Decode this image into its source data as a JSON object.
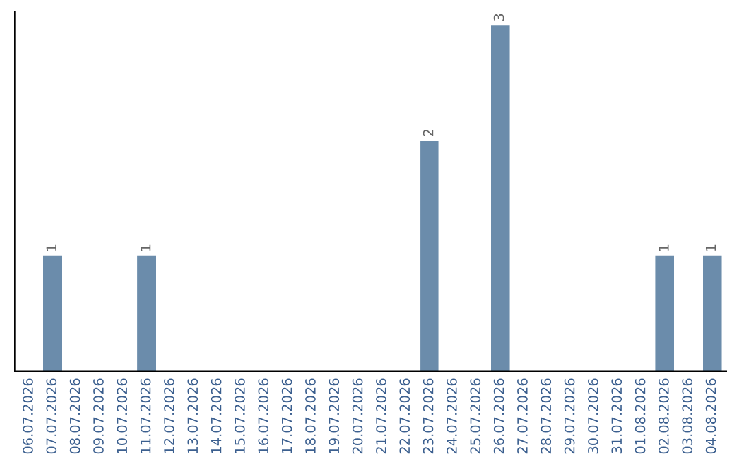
{
  "chart_data": {
    "type": "bar",
    "categories": [
      "06.07.2026",
      "07.07.2026",
      "08.07.2026",
      "09.07.2026",
      "10.07.2026",
      "11.07.2026",
      "12.07.2026",
      "13.07.2026",
      "14.07.2026",
      "15.07.2026",
      "16.07.2026",
      "17.07.2026",
      "18.07.2026",
      "19.07.2026",
      "20.07.2026",
      "21.07.2026",
      "22.07.2026",
      "23.07.2026",
      "24.07.2026",
      "25.07.2026",
      "26.07.2026",
      "27.07.2026",
      "28.07.2026",
      "29.07.2026",
      "30.07.2026",
      "31.07.2026",
      "01.08.2026",
      "02.08.2026",
      "03.08.2026",
      "04.08.2026"
    ],
    "values": [
      0,
      1,
      0,
      0,
      0,
      1,
      0,
      0,
      0,
      0,
      0,
      0,
      0,
      0,
      0,
      0,
      0,
      2,
      0,
      0,
      3,
      0,
      0,
      0,
      0,
      0,
      0,
      1,
      0,
      1
    ],
    "value_labels": [
      null,
      "1",
      null,
      null,
      null,
      "1",
      null,
      null,
      null,
      null,
      null,
      null,
      null,
      null,
      null,
      null,
      null,
      "2",
      null,
      null,
      "3",
      null,
      null,
      null,
      null,
      null,
      null,
      "1",
      null,
      "1"
    ],
    "color": "#6b8cab",
    "tick_labels": "x",
    "grid": false
  }
}
